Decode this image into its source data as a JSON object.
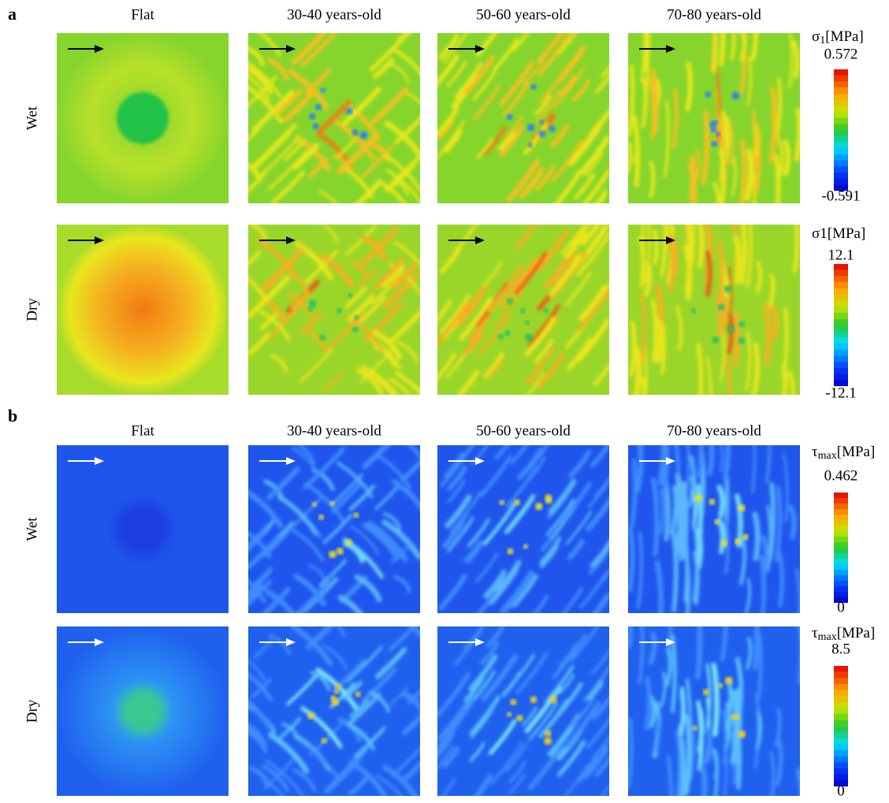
{
  "panels": [
    {
      "label": "a",
      "columns": [
        "Flat",
        "30-40 years-old",
        "50-60 years-old",
        "70-80 years-old"
      ],
      "rows": [
        {
          "label": "Wet",
          "colorbar": {
            "symbol": "σ",
            "sub": "1",
            "unit": "[MPa]",
            "max": 0.572,
            "min": -0.591
          }
        },
        {
          "label": "Dry",
          "colorbar": {
            "symbol": "σ1",
            "unit": "[MPa]",
            "max": 12.1,
            "min": -12.1
          }
        }
      ]
    },
    {
      "label": "b",
      "columns": [
        "Flat",
        "30-40 years-old",
        "50-60 years-old",
        "70-80 years-old"
      ],
      "rows": [
        {
          "label": "Wet",
          "colorbar": {
            "symbol": "τ",
            "sub": "max",
            "unit": "[MPa]",
            "max": 0.462,
            "min": 0
          }
        },
        {
          "label": "Dry",
          "colorbar": {
            "symbol": "τ",
            "sub": "max",
            "unit": "[MPa]",
            "max": 8.5,
            "min": 0
          }
        }
      ]
    }
  ]
}
